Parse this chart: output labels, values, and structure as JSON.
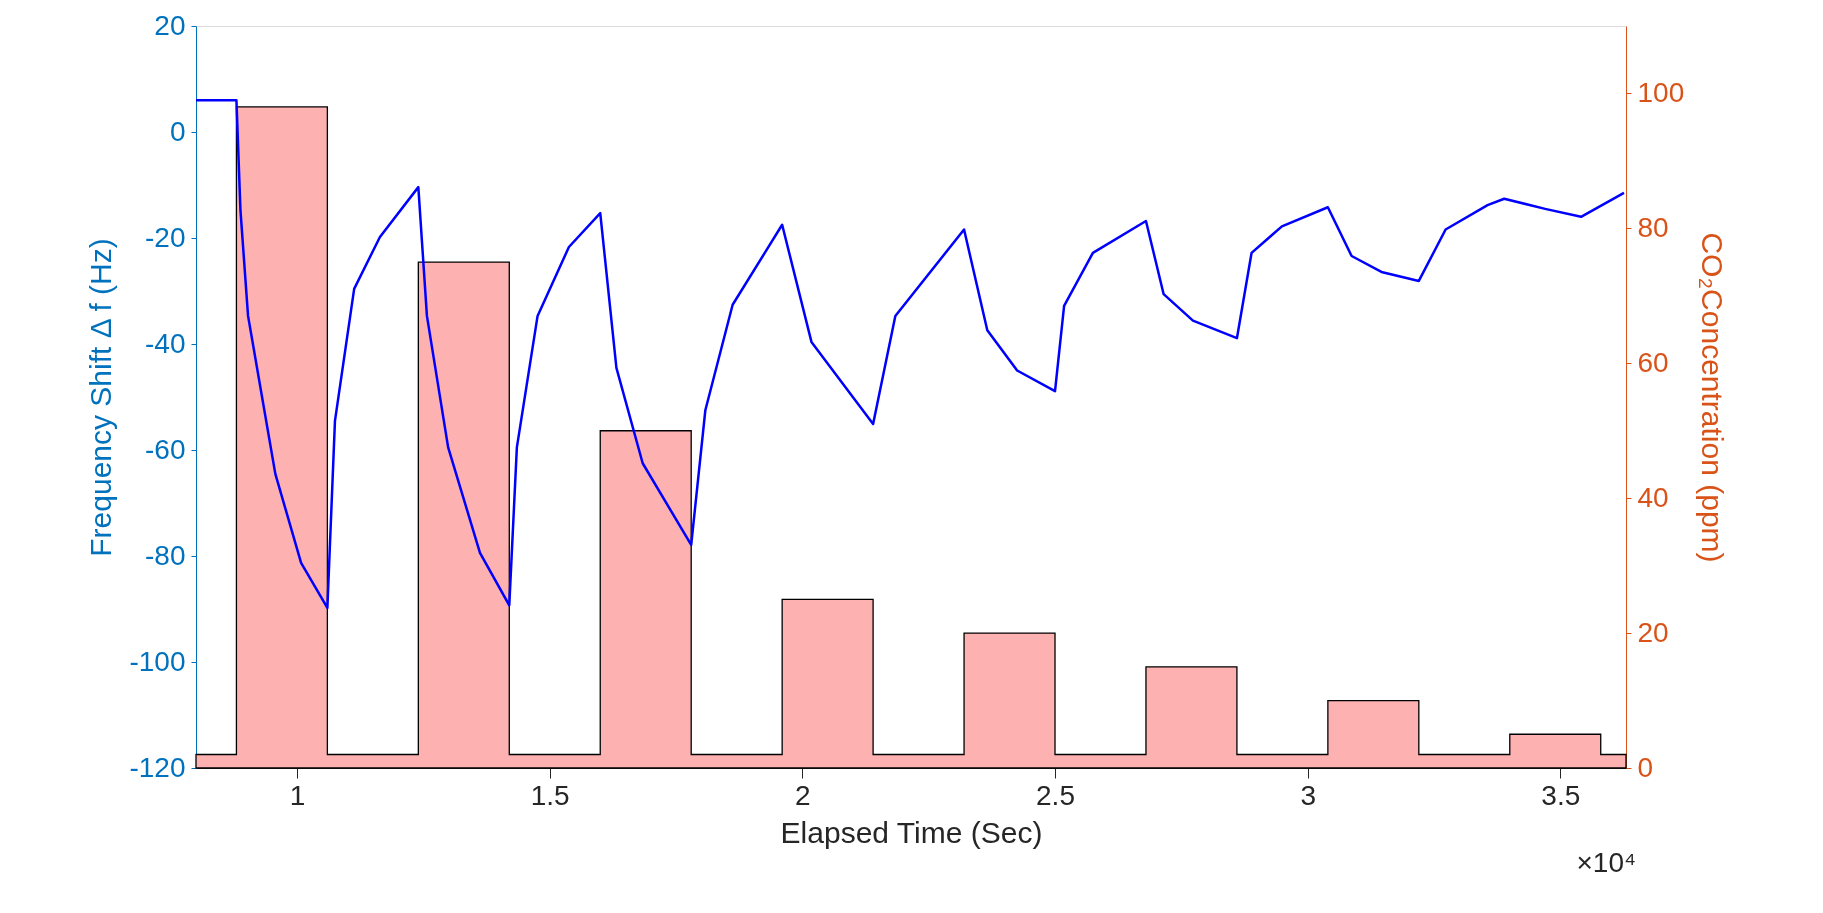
{
  "chart_data": {
    "type": "line",
    "xlabel": "Elapsed Time (Sec)",
    "ylabel": "Frequency Shift Δ f (Hz)",
    "y2label": "CO₂Concentration (ppm)",
    "annotations": [
      "×10⁴"
    ],
    "xlim": [
      0.8,
      3.63
    ],
    "xticks": [
      1,
      1.5,
      2,
      2.5,
      3,
      3.5
    ],
    "ylim": [
      -120,
      20
    ],
    "yticks": [
      -120,
      -100,
      -80,
      -60,
      -40,
      -20,
      0,
      20
    ],
    "y2lim": [
      0,
      110
    ],
    "y2ticks": [
      0,
      20,
      40,
      60,
      80,
      100
    ],
    "grid": false,
    "series": [
      {
        "type": "area",
        "axis": "y2",
        "color": "#fdb1b1",
        "x": [
          0.8,
          0.88,
          0.88,
          1.06,
          1.06,
          1.24,
          1.24,
          1.42,
          1.42,
          1.6,
          1.6,
          1.78,
          1.78,
          1.96,
          1.96,
          2.14,
          2.14,
          2.32,
          2.32,
          2.5,
          2.5,
          2.68,
          2.68,
          2.86,
          2.86,
          3.04,
          3.04,
          3.22,
          3.22,
          3.4,
          3.4,
          3.58,
          3.58,
          3.63
        ],
        "values": [
          2,
          2,
          98,
          98,
          2,
          2,
          75,
          75,
          2,
          2,
          50,
          50,
          2,
          2,
          25,
          25,
          2,
          2,
          20,
          20,
          2,
          2,
          15,
          15,
          2,
          2,
          10,
          10,
          2,
          2,
          5,
          5,
          2,
          2
        ]
      },
      {
        "axis": "y",
        "color": "#0000ff",
        "x": [
          0.8,
          0.88,
          0.888,
          0.903,
          0.957,
          1.008,
          1.06,
          1.075,
          1.113,
          1.164,
          1.24,
          1.257,
          1.299,
          1.362,
          1.42,
          1.435,
          1.476,
          1.538,
          1.6,
          1.632,
          1.684,
          1.78,
          1.808,
          1.862,
          1.96,
          2.018,
          2.14,
          2.184,
          2.32,
          2.366,
          2.425,
          2.5,
          2.518,
          2.575,
          2.68,
          2.715,
          2.773,
          2.86,
          2.889,
          2.949,
          3.04,
          3.087,
          3.146,
          3.22,
          3.273,
          3.356,
          3.389,
          3.47,
          3.541,
          3.626
        ],
        "values": [
          6,
          6,
          -14.8,
          -34.7,
          -64.5,
          -81.3,
          -89.8,
          -54.5,
          -29.6,
          -19.8,
          -10.4,
          -34.7,
          -59.5,
          -79.4,
          -89.3,
          -59.5,
          -34.7,
          -21.7,
          -15.3,
          -44.5,
          -62.5,
          -77.9,
          -52.5,
          -32.6,
          -17.5,
          -39.6,
          -55.1,
          -34.7,
          -18.4,
          -37.4,
          -45,
          -48.9,
          -32.8,
          -22.8,
          -16.8,
          -30.6,
          -35.6,
          -38.9,
          -22.8,
          -17.8,
          -14.2,
          -23.4,
          -26.4,
          -28.1,
          -18.4,
          -13.8,
          -12.6,
          -14.5,
          -16,
          -11.5
        ]
      }
    ]
  }
}
